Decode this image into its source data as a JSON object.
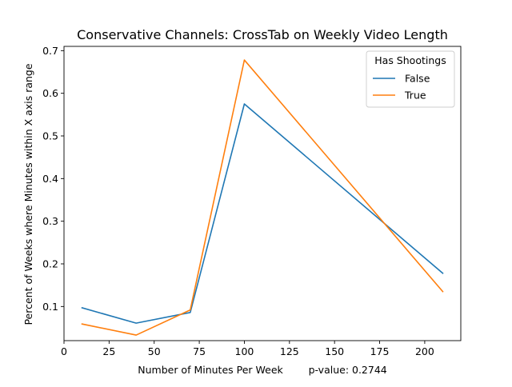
{
  "chart_data": {
    "type": "line",
    "title": "Conservative Channels: CrossTab on Weekly Video Length",
    "xlabel": "Number of Minutes Per Week        p-value: 0.2744",
    "ylabel": "Percent of Weeks where Minutes within X axis range",
    "xlim": [
      0,
      220
    ],
    "ylim": [
      0.02,
      0.71
    ],
    "xticks": [
      0,
      25,
      50,
      75,
      100,
      125,
      150,
      175,
      200
    ],
    "yticks": [
      0.1,
      0.2,
      0.3,
      0.4,
      0.5,
      0.6,
      0.7
    ],
    "grid": false,
    "legend": {
      "title": "Has Shootings",
      "placement": "top-right"
    },
    "x": [
      10,
      40,
      70,
      100,
      210
    ],
    "series": [
      {
        "name": "False",
        "color": "#1f77b4",
        "values": [
          0.097,
          0.061,
          0.086,
          0.575,
          0.178
        ]
      },
      {
        "name": "True",
        "color": "#ff7f0e",
        "values": [
          0.059,
          0.033,
          0.092,
          0.678,
          0.135
        ]
      }
    ]
  }
}
